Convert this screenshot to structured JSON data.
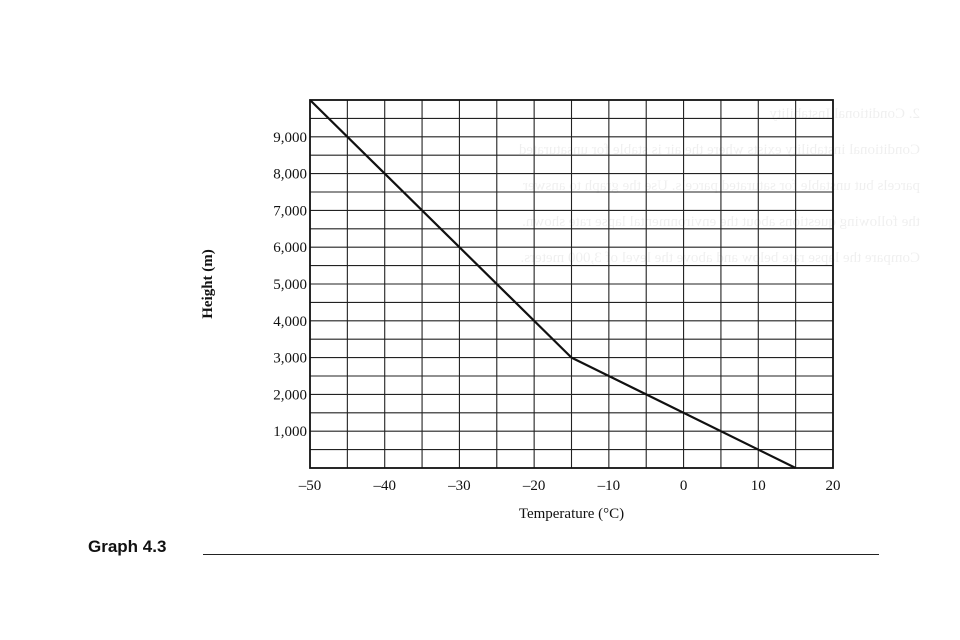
{
  "chart_data": {
    "type": "line",
    "title": "",
    "xlabel": "Temperature (°C)",
    "ylabel": "Height (m)",
    "xlim": [
      -50,
      20
    ],
    "ylim": [
      0,
      10000
    ],
    "x_ticks": [
      -50,
      -40,
      -30,
      -20,
      -10,
      0,
      10,
      20
    ],
    "x_tick_labels": [
      "–50",
      "–40",
      "–30",
      "–20",
      "–10",
      "0",
      "10",
      "20"
    ],
    "y_ticks": [
      1000,
      2000,
      3000,
      4000,
      5000,
      6000,
      7000,
      8000,
      9000
    ],
    "y_tick_labels": [
      "1,000",
      "2,000",
      "3,000",
      "4,000",
      "5,000",
      "6,000",
      "7,000",
      "8,000",
      "9,000"
    ],
    "grid": true,
    "x_grid_step": 5,
    "y_grid_step": 500,
    "series": [
      {
        "points": [
          {
            "x": 15,
            "y": 0
          },
          {
            "x": -15,
            "y": 3000
          },
          {
            "x": -50,
            "y": 10000
          }
        ]
      }
    ]
  },
  "caption": {
    "label": "Graph 4.3"
  },
  "ghost_text": {
    "lines": [
      "2. Conditional Instability",
      "Conditional instability exists where the air is stable for unsaturated",
      "parcels but unstable for saturated parcels. Use the graph to answer",
      "the following questions about the environmental lapse rate shown.",
      "Compare the lapse rate below and above the level of 3,000 meters."
    ]
  }
}
